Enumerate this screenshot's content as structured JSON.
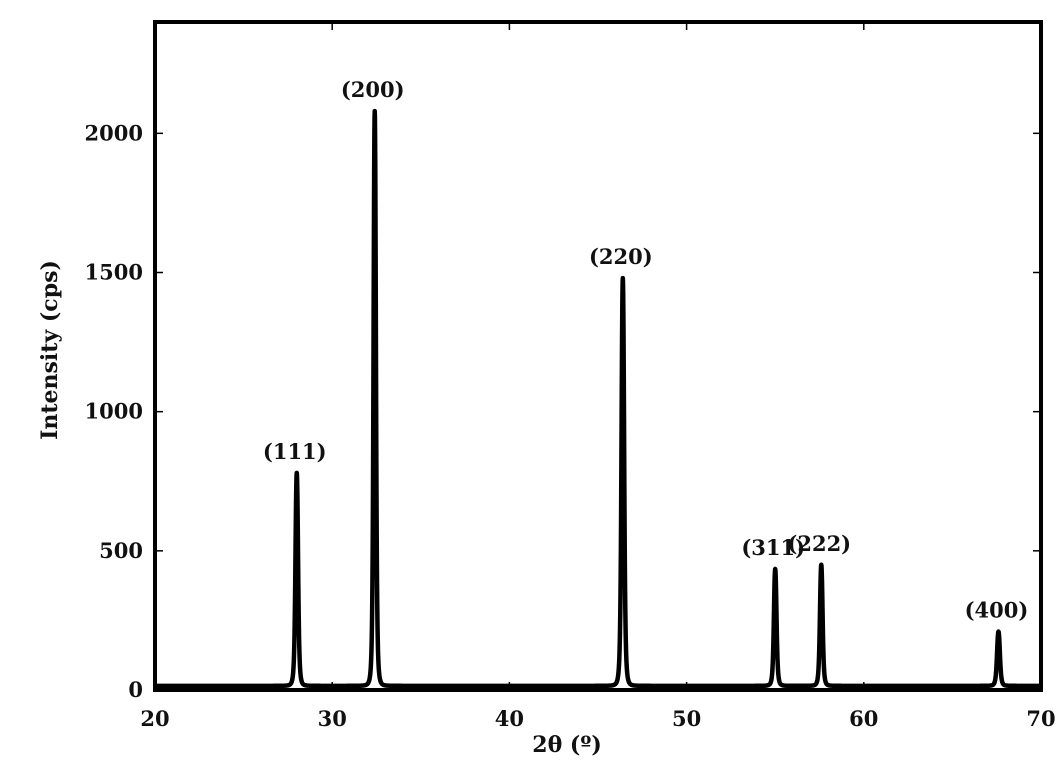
{
  "chart_data": {
    "type": "line",
    "xlabel": "2θ (º)",
    "ylabel": "Intensity (cps)",
    "xlim": [
      20,
      70
    ],
    "ylim": [
      0,
      2400
    ],
    "xticks": [
      20,
      30,
      40,
      50,
      60,
      70
    ],
    "xtick_labels": [
      "20",
      "30",
      "40",
      "50",
      "60",
      "70"
    ],
    "yticks": [
      0,
      500,
      1000,
      1500,
      2000
    ],
    "ytick_labels": [
      "0",
      "500",
      "1000",
      "1500",
      "2000"
    ],
    "grid": false,
    "line_color": "#000000",
    "baseline": 15,
    "peaks": [
      {
        "x": 28.0,
        "y": 780,
        "label": "(111)",
        "width": 0.22
      },
      {
        "x": 32.4,
        "y": 2080,
        "label": "(200)",
        "width": 0.2
      },
      {
        "x": 46.4,
        "y": 1480,
        "label": "(220)",
        "width": 0.22
      },
      {
        "x": 55.0,
        "y": 435,
        "label": "(311)",
        "width": 0.22
      },
      {
        "x": 57.6,
        "y": 450,
        "label": "(222)",
        "width": 0.22
      },
      {
        "x": 67.6,
        "y": 210,
        "label": "(400)",
        "width": 0.24
      }
    ]
  }
}
